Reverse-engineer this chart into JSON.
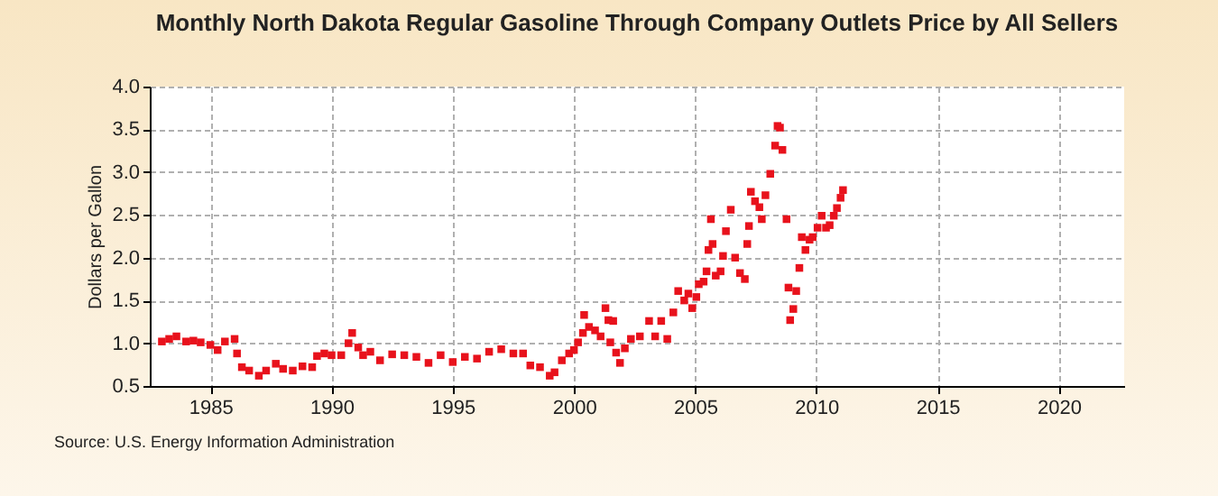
{
  "chart_data": {
    "type": "scatter",
    "title": "Monthly North Dakota Regular Gasoline Through Company Outlets Price by All Sellers",
    "ylabel": "Dollars per Gallon",
    "annotations": [
      "Source: U.S. Energy Information Administration"
    ],
    "x": [
      1983.0,
      1983.3,
      1983.6,
      1984.0,
      1984.3,
      1984.6,
      1985.0,
      1985.3,
      1985.6,
      1986.0,
      1986.1,
      1986.3,
      1986.6,
      1987.0,
      1987.3,
      1987.7,
      1988.0,
      1988.4,
      1988.8,
      1989.2,
      1989.4,
      1989.7,
      1990.0,
      1990.4,
      1990.7,
      1990.85,
      1991.1,
      1991.3,
      1991.6,
      1992.0,
      1992.5,
      1993.0,
      1993.5,
      1994.0,
      1994.5,
      1995.0,
      1995.5,
      1996.0,
      1996.5,
      1997.0,
      1997.5,
      1997.9,
      1998.2,
      1998.6,
      1999.0,
      1999.2,
      1999.5,
      1999.8,
      2000.0,
      2000.17,
      2000.37,
      2000.42,
      2000.62,
      2000.87,
      2001.1,
      2001.3,
      2001.42,
      2001.5,
      2001.62,
      2001.74,
      2001.9,
      2002.1,
      2002.35,
      2002.72,
      2003.1,
      2003.35,
      2003.6,
      2003.85,
      2004.1,
      2004.3,
      2004.55,
      2004.72,
      2004.88,
      2005.05,
      2005.15,
      2005.35,
      2005.47,
      2005.55,
      2005.65,
      2005.72,
      2005.85,
      2006.05,
      2006.15,
      2006.27,
      2006.47,
      2006.65,
      2006.85,
      2007.05,
      2007.15,
      2007.22,
      2007.3,
      2007.47,
      2007.65,
      2007.75,
      2007.9,
      2008.1,
      2008.3,
      2008.4,
      2008.5,
      2008.6,
      2008.77,
      2008.85,
      2008.92,
      2009.05,
      2009.17,
      2009.3,
      2009.4,
      2009.55,
      2009.72,
      2009.85,
      2010.05,
      2010.22,
      2010.4,
      2010.55,
      2010.72,
      2010.85,
      2011.0,
      2011.1
    ],
    "series": [
      {
        "color": "#e8121c",
        "values": [
          1.02,
          1.05,
          1.08,
          1.02,
          1.03,
          1.01,
          0.98,
          0.92,
          1.02,
          1.05,
          0.88,
          0.72,
          0.68,
          0.62,
          0.68,
          0.76,
          0.7,
          0.68,
          0.73,
          0.72,
          0.85,
          0.88,
          0.86,
          0.86,
          1.0,
          1.12,
          0.95,
          0.86,
          0.9,
          0.8,
          0.87,
          0.86,
          0.84,
          0.77,
          0.86,
          0.78,
          0.84,
          0.82,
          0.9,
          0.93,
          0.88,
          0.88,
          0.74,
          0.72,
          0.62,
          0.66,
          0.8,
          0.88,
          0.92,
          1.01,
          1.12,
          1.33,
          1.19,
          1.15,
          1.08,
          1.41,
          1.27,
          1.01,
          1.26,
          0.89,
          0.77,
          0.94,
          1.05,
          1.08,
          1.26,
          1.08,
          1.26,
          1.05,
          1.36,
          1.61,
          1.5,
          1.58,
          1.41,
          1.54,
          1.69,
          1.72,
          1.84,
          2.09,
          2.45,
          2.16,
          1.79,
          1.84,
          2.02,
          2.31,
          2.56,
          2.0,
          1.82,
          1.75,
          2.16,
          2.37,
          2.77,
          2.66,
          2.59,
          2.45,
          2.73,
          2.98,
          3.31,
          3.54,
          3.52,
          3.26,
          2.45,
          1.65,
          1.27,
          1.4,
          1.61,
          1.88,
          2.24,
          2.09,
          2.21,
          2.24,
          2.35,
          2.49,
          2.35,
          2.38,
          2.49,
          2.58,
          2.7,
          2.79
        ]
      }
    ],
    "marker": "square",
    "grid": true,
    "xlim": [
      1982.5,
      2022.7
    ],
    "xticks": [
      1985,
      1990,
      1995,
      2000,
      2005,
      2010,
      2015,
      2020
    ],
    "ylim": [
      0.5,
      4.0
    ],
    "yticks": [
      0.5,
      {
        "value": 1,
        "label": "1.0"
      },
      1.5,
      {
        "value": 2,
        "label": "2.0"
      },
      2.5,
      {
        "value": 3,
        "label": "3.0"
      },
      3.5,
      {
        "value": 4,
        "label": "4.0"
      }
    ]
  }
}
